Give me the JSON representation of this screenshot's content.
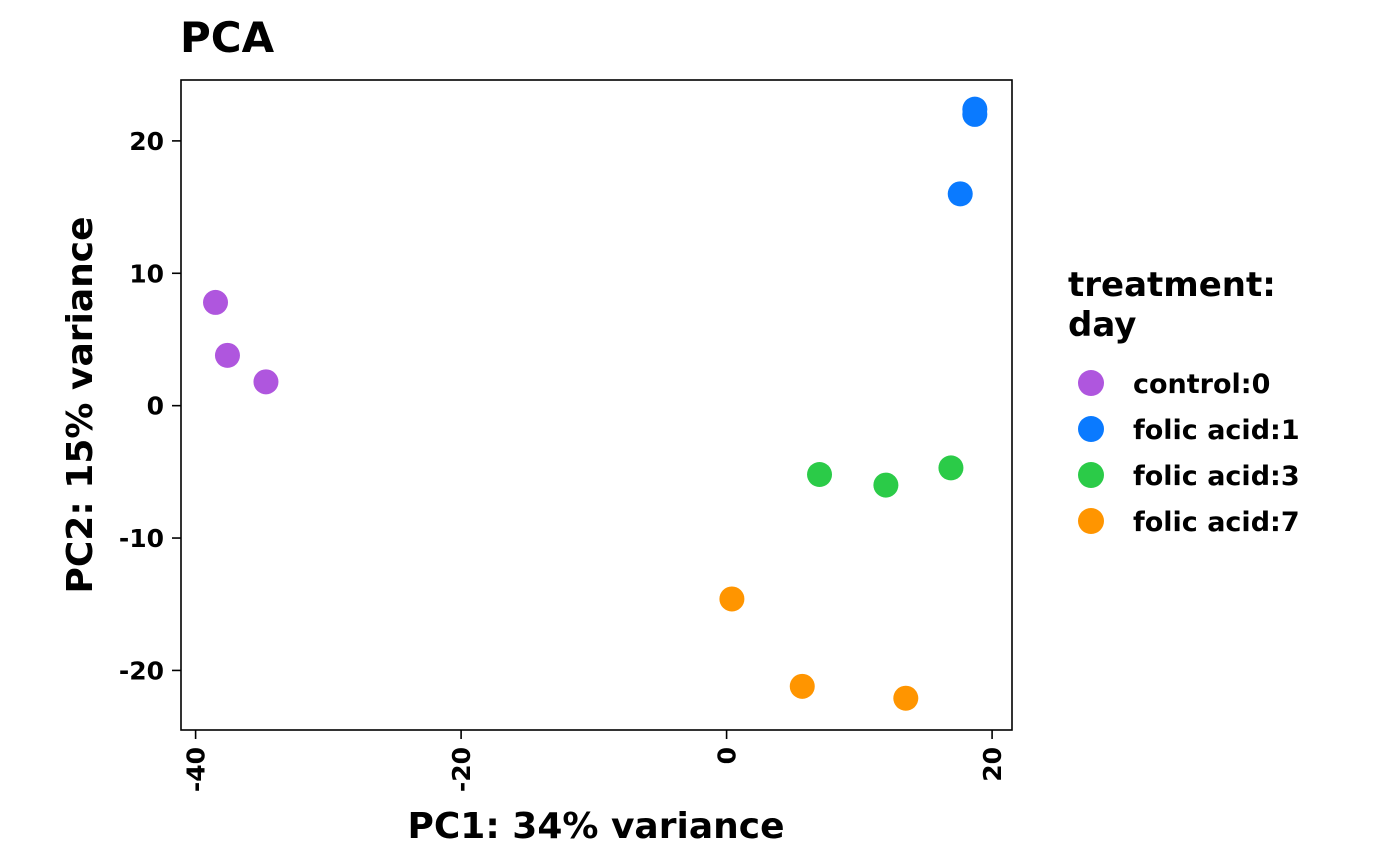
{
  "chart_data": {
    "type": "scatter",
    "title": "PCA",
    "xlabel": "PC1: 34% variance",
    "ylabel": "PC2: 15% variance",
    "xlim": [
      -41.1,
      21.5
    ],
    "ylim": [
      -24.5,
      24.6
    ],
    "xticks": [
      -40,
      -20,
      0,
      20
    ],
    "xtick_labels": [
      "-40",
      "-20",
      "0",
      "20"
    ],
    "yticks": [
      -20,
      -10,
      0,
      10,
      20
    ],
    "ytick_labels": [
      "-20",
      "-10",
      "0",
      "10",
      "20"
    ],
    "grid": false,
    "legend": {
      "title_lines": [
        "treatment:",
        "day"
      ],
      "placement": "right"
    },
    "series": [
      {
        "name": "control:0",
        "color": "#AF56DE",
        "points": [
          [
            -38.5,
            7.8
          ],
          [
            -37.6,
            3.8
          ],
          [
            -34.7,
            1.8
          ]
        ]
      },
      {
        "name": "folic acid:1",
        "color": "#0A7AFF",
        "points": [
          [
            18.7,
            22.4
          ],
          [
            18.7,
            22.0
          ],
          [
            17.6,
            16.0
          ]
        ]
      },
      {
        "name": "folic acid:3",
        "color": "#2BCB48",
        "points": [
          [
            7.0,
            -5.2
          ],
          [
            12.0,
            -6.0
          ],
          [
            16.9,
            -4.7
          ]
        ]
      },
      {
        "name": "folic acid:7",
        "color": "#FF9500",
        "points": [
          [
            0.4,
            -14.6
          ],
          [
            5.7,
            -21.2
          ],
          [
            13.5,
            -22.1
          ]
        ]
      }
    ]
  }
}
